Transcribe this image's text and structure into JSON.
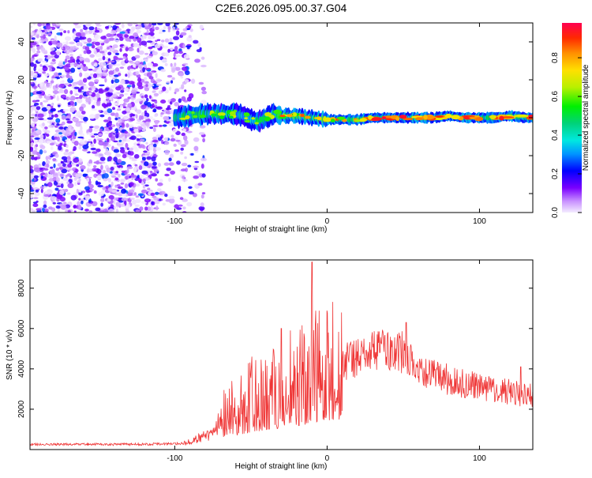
{
  "chart_data": {
    "title": "C2E6.2026.095.00.37.G04",
    "x_range": [
      -195,
      135
    ],
    "x_ticks": [
      -100,
      0,
      100
    ],
    "x_label": "Height of straight line (km)",
    "spectrogram": {
      "type": "heatmap",
      "ylabel": "Frequency (Hz)",
      "ylim": [
        -50,
        50
      ],
      "y_ticks": [
        -40,
        -20,
        0,
        20,
        40
      ],
      "noise_region_x": [
        -195,
        -80
      ],
      "signal_band_x": [
        -100,
        135
      ],
      "signal_center_hz": [
        [
          -100,
          0
        ],
        [
          -90,
          1
        ],
        [
          -80,
          2
        ],
        [
          -70,
          2
        ],
        [
          -60,
          2
        ],
        [
          -55,
          1
        ],
        [
          -50,
          -1
        ],
        [
          -45,
          -2
        ],
        [
          -40,
          0
        ],
        [
          -35,
          2
        ],
        [
          -30,
          1
        ],
        [
          -20,
          1
        ],
        [
          -10,
          0
        ],
        [
          0,
          -1
        ],
        [
          10,
          -1
        ],
        [
          20,
          -1
        ],
        [
          30,
          0
        ],
        [
          50,
          0
        ],
        [
          70,
          0
        ],
        [
          80,
          1
        ],
        [
          90,
          0
        ],
        [
          110,
          0
        ],
        [
          120,
          1
        ],
        [
          130,
          0
        ]
      ],
      "colorbar": {
        "label": "Normalized spectral amplitude",
        "ticks": [
          "0.0",
          "0.2",
          "0.4",
          "0.6",
          "0.8"
        ],
        "tick_values": [
          0.0,
          0.2,
          0.4,
          0.6,
          0.8
        ],
        "range": [
          0,
          0.98
        ]
      }
    },
    "snr": {
      "type": "line",
      "ylabel": "SNR (10 * v/v)",
      "ylim": [
        0,
        9400
      ],
      "y_ticks": [
        2000,
        4000,
        6000,
        8000
      ],
      "color": "#ef3535",
      "envelope": [
        [
          -195,
          250
        ],
        [
          -120,
          260
        ],
        [
          -95,
          300
        ],
        [
          -85,
          550
        ],
        [
          -75,
          800
        ],
        [
          -70,
          1500
        ],
        [
          -62,
          1900
        ],
        [
          -55,
          2200
        ],
        [
          -45,
          2600
        ],
        [
          -35,
          2900
        ],
        [
          -25,
          3200
        ],
        [
          -15,
          3500
        ],
        [
          -10,
          3700
        ],
        [
          -5,
          3900
        ],
        [
          0,
          4100
        ],
        [
          10,
          4300
        ],
        [
          20,
          4600
        ],
        [
          30,
          4800
        ],
        [
          40,
          4850
        ],
        [
          50,
          4800
        ],
        [
          55,
          4550
        ],
        [
          60,
          4000
        ],
        [
          70,
          3700
        ],
        [
          80,
          3450
        ],
        [
          90,
          3250
        ],
        [
          100,
          3100
        ],
        [
          110,
          2950
        ],
        [
          120,
          2850
        ],
        [
          130,
          2700
        ],
        [
          135,
          2650
        ]
      ],
      "peaks": [
        [
          -10,
          9300
        ],
        [
          52,
          6300
        ],
        [
          -30,
          6000
        ],
        [
          127,
          4100
        ]
      ]
    }
  }
}
